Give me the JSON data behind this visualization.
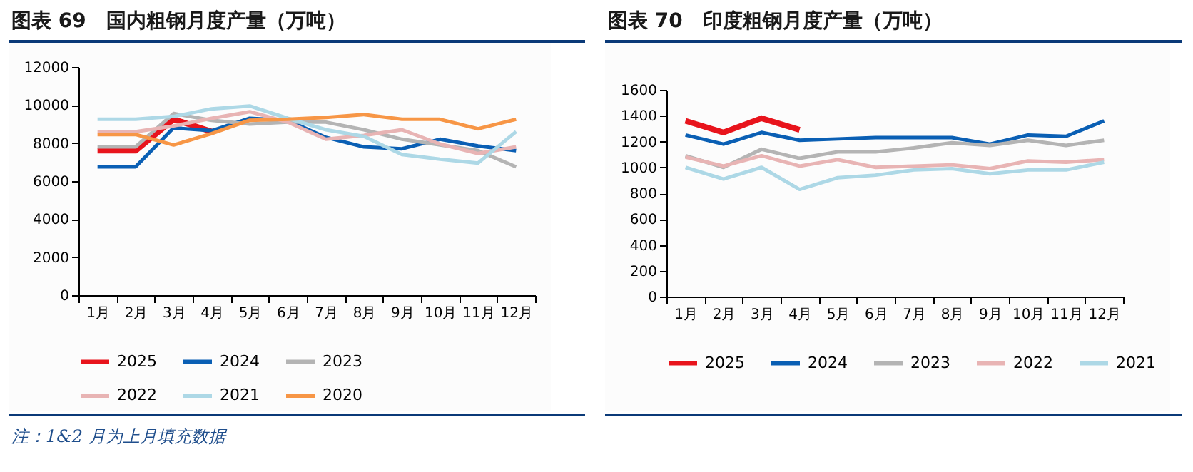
{
  "chart_data": [
    {
      "type": "line",
      "title": "图表 69　国内粗钢月度产量（万吨）",
      "annotations": [
        "注：1&2 月为上月填充数据"
      ],
      "categories": [
        "1月",
        "2月",
        "3月",
        "4月",
        "5月",
        "6月",
        "7月",
        "8月",
        "9月",
        "10月",
        "11月",
        "12月"
      ],
      "ylim": [
        0,
        12000
      ],
      "yticks": [
        0,
        2000,
        4000,
        6000,
        8000,
        10000,
        12000
      ],
      "grid": false,
      "legend": "bottom",
      "series": [
        {
          "name": "2025",
          "color": "#e8141c",
          "values": [
            7600,
            7600,
            9250,
            8600,
            null,
            null,
            null,
            null,
            null,
            null,
            null,
            null
          ]
        },
        {
          "name": "2024",
          "color": "#0a5fb4",
          "values": [
            6750,
            6750,
            8800,
            8650,
            9300,
            9200,
            8300,
            7800,
            7700,
            8200,
            7850,
            7600
          ]
        },
        {
          "name": "2023",
          "color": "#b4b4b4",
          "values": [
            7800,
            7800,
            9550,
            9200,
            9000,
            9100,
            9100,
            8700,
            8200,
            7900,
            7600,
            6750
          ]
        },
        {
          "name": "2022",
          "color": "#e8b4b4",
          "values": [
            8600,
            8600,
            8900,
            9300,
            9650,
            9100,
            8200,
            8400,
            8700,
            7950,
            7450,
            7800
          ]
        },
        {
          "name": "2021",
          "color": "#add8e6",
          "values": [
            9250,
            9250,
            9400,
            9800,
            9950,
            9300,
            8700,
            8350,
            7400,
            7150,
            6950,
            8600
          ]
        },
        {
          "name": "2020",
          "color": "#f79646",
          "values": [
            8450,
            8450,
            7900,
            8500,
            9200,
            9250,
            9350,
            9500,
            9250,
            9250,
            8750,
            9250
          ]
        }
      ]
    },
    {
      "type": "line",
      "title": "图表 70　印度粗钢月度产量（万吨）",
      "categories": [
        "1月",
        "2月",
        "3月",
        "4月",
        "5月",
        "6月",
        "7月",
        "8月",
        "9月",
        "10月",
        "11月",
        "12月"
      ],
      "ylim": [
        0,
        1600
      ],
      "yticks": [
        0,
        200,
        400,
        600,
        800,
        1000,
        1200,
        1400,
        1600
      ],
      "grid": false,
      "legend": "bottom",
      "series": [
        {
          "name": "2025",
          "color": "#e8141c",
          "values": [
            1360,
            1270,
            1380,
            1290,
            null,
            null,
            null,
            null,
            null,
            null,
            null,
            null
          ]
        },
        {
          "name": "2024",
          "color": "#0a5fb4",
          "values": [
            1250,
            1180,
            1270,
            1210,
            1220,
            1230,
            1230,
            1230,
            1180,
            1250,
            1240,
            1360
          ]
        },
        {
          "name": "2023",
          "color": "#b4b4b4",
          "values": [
            1090,
            1000,
            1140,
            1070,
            1120,
            1120,
            1150,
            1190,
            1170,
            1210,
            1170,
            1210
          ]
        },
        {
          "name": "2022",
          "color": "#e8b4b4",
          "values": [
            1080,
            1010,
            1090,
            1010,
            1060,
            1000,
            1010,
            1020,
            990,
            1050,
            1040,
            1060
          ]
        },
        {
          "name": "2021",
          "color": "#add8e6",
          "values": [
            1000,
            910,
            1000,
            830,
            920,
            940,
            980,
            990,
            950,
            980,
            980,
            1040
          ]
        }
      ]
    }
  ]
}
